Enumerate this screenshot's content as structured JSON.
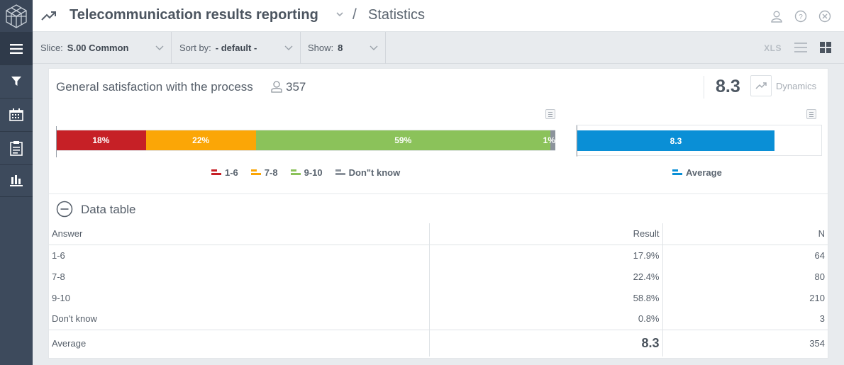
{
  "app": {
    "title": "Telecommunication results reporting",
    "breadcrumb_sep": "/",
    "page": "Statistics"
  },
  "filters": {
    "slice": {
      "label": "Slice:",
      "value": "S.00 Common"
    },
    "sort": {
      "label": "Sort by:",
      "value": "- default -"
    },
    "show": {
      "label": "Show:",
      "value": "8"
    },
    "export_label": "XLS"
  },
  "question": {
    "title": "General satisfaction with the process",
    "respondents": "357",
    "score": "8.3",
    "dynamics_label": "Dynamics"
  },
  "chart_data": [
    {
      "type": "bar",
      "orientation": "horizontal-stacked",
      "series": [
        {
          "name": "1-6",
          "value": 18,
          "label": "18%",
          "color": "#c62026"
        },
        {
          "name": "7-8",
          "value": 22,
          "label": "22%",
          "color": "#fba606"
        },
        {
          "name": "9-10",
          "value": 59,
          "label": "59%",
          "color": "#8bc25a"
        },
        {
          "name": "Don\"t know",
          "value": 1,
          "label": "1%",
          "color": "#8c939c"
        }
      ],
      "legend_position": "bottom"
    },
    {
      "type": "bar",
      "orientation": "horizontal",
      "series": [
        {
          "name": "Average",
          "value": 8.3,
          "label": "8.3",
          "color": "#0a8fd6"
        }
      ],
      "xlim": [
        0,
        10
      ],
      "legend_position": "bottom"
    }
  ],
  "data_table": {
    "title": "Data table",
    "headers": {
      "answer": "Answer",
      "result": "Result",
      "n": "N"
    },
    "rows": [
      {
        "answer": "1-6",
        "result": "17.9%",
        "n": "64"
      },
      {
        "answer": "7-8",
        "result": "22.4%",
        "n": "80"
      },
      {
        "answer": "9-10",
        "result": "58.8%",
        "n": "210"
      },
      {
        "answer": "Don't know",
        "result": "0.8%",
        "n": "3"
      }
    ],
    "average": {
      "label": "Average",
      "result": "8.3",
      "n": "354"
    }
  }
}
